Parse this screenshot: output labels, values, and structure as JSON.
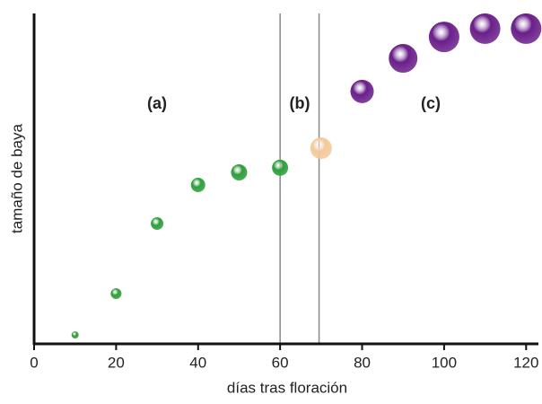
{
  "chart_data": {
    "type": "scatter",
    "xlabel": "días tras floración",
    "ylabel": "tamaño de baya",
    "x": [
      10,
      20,
      30,
      40,
      50,
      60,
      70,
      80,
      90,
      100,
      110,
      120
    ],
    "values": [
      2.7,
      15.2,
      36.4,
      48.1,
      51.9,
      53.3,
      59.2,
      76.4,
      86.4,
      92.9,
      95.4,
      95.4
    ],
    "sizes": [
      4,
      6,
      7,
      8,
      9,
      9,
      12,
      13,
      16,
      17,
      17,
      17
    ],
    "colors": [
      "#2e9e3a",
      "#2e9e3a",
      "#2e9e3a",
      "#2e9e3a",
      "#2e9e3a",
      "#2e9e3a",
      "#f2c99a",
      "#6a1f8a",
      "#6a1f8a",
      "#6a1f8a",
      "#6a1f8a",
      "#6a1f8a"
    ],
    "xlim": [
      0,
      123
    ],
    "ylim": [
      0,
      100
    ],
    "xticks": [
      0,
      20,
      40,
      60,
      80,
      100,
      120
    ],
    "vlines": [
      60,
      69.5
    ],
    "annotations": [
      "(a)",
      "(b)",
      "(c)"
    ]
  }
}
